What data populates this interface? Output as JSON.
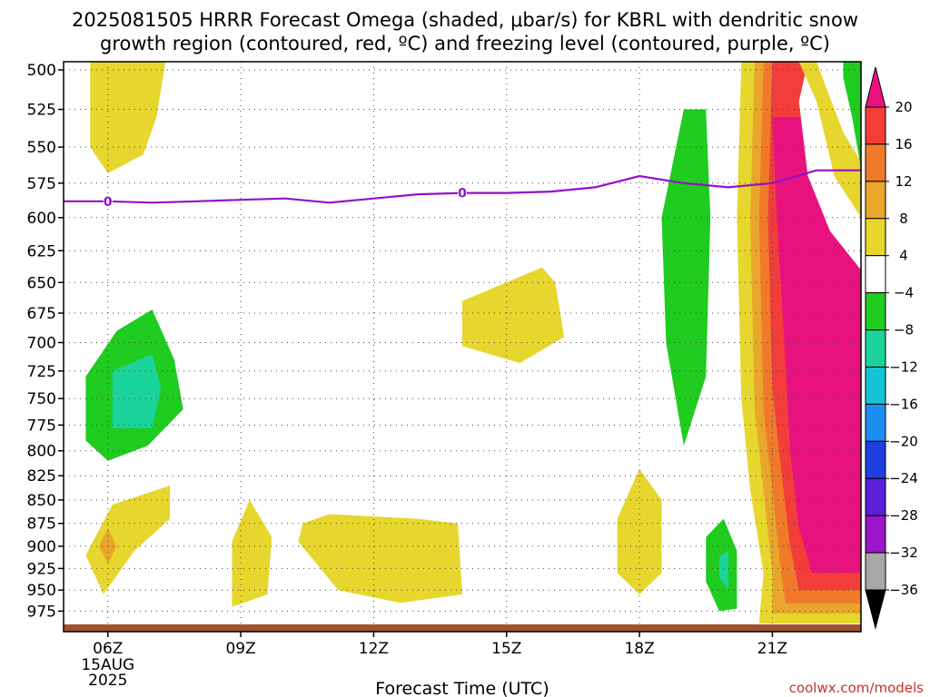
{
  "title_line1": "2025081505 HRRR Forecast Omega (shaded, μbar/s) for KBRL with dendritic snow",
  "title_line2": "growth region (contoured, red, ºC) and freezing level (contoured, purple, ºC)",
  "credit": "coolwx.com/models",
  "chart_data": {
    "type": "time-height cross section (filled contour)",
    "title": "2025081505 HRRR Forecast Omega (shaded, μbar/s) for KBRL with dendritic snow growth region (contoured, red, ºC) and freezing level (contoured, purple, ºC)",
    "xlabel": "Forecast Time (UTC)",
    "ylabel": "",
    "x_ticks": [
      {
        "label": "06Z",
        "hour": 6,
        "sublabels": [
          "15AUG",
          "2025"
        ]
      },
      {
        "label": "09Z",
        "hour": 9
      },
      {
        "label": "12Z",
        "hour": 12
      },
      {
        "label": "15Z",
        "hour": 15
      },
      {
        "label": "18Z",
        "hour": 18
      },
      {
        "label": "21Z",
        "hour": 21
      }
    ],
    "xlim_hours": [
      5,
      23
    ],
    "y_ticks": [
      500,
      525,
      550,
      575,
      600,
      625,
      650,
      675,
      700,
      725,
      750,
      775,
      800,
      825,
      850,
      875,
      900,
      925,
      950,
      975
    ],
    "y_units": "hPa",
    "ylim": [
      495,
      1000
    ],
    "y_scale": "log (pressure)",
    "grid": "dotted",
    "colorbar": {
      "labels": [
        "20",
        "16",
        "12",
        "8",
        "4",
        "−4",
        "−8",
        "−12",
        "−16",
        "−20",
        "−24",
        "−28",
        "−32",
        "−36"
      ],
      "levels": [
        {
          "range": ">20",
          "color": "#e8127f"
        },
        {
          "range": "16 to 20",
          "color": "#f23d3a"
        },
        {
          "range": "12 to 16",
          "color": "#f07a2a"
        },
        {
          "range": "8 to 12",
          "color": "#e9a62c"
        },
        {
          "range": "4 to 8",
          "color": "#e6d62e"
        },
        {
          "range": "-4 to 4",
          "color": "#ffffff"
        },
        {
          "range": "-8 to -4",
          "color": "#1fcc1f"
        },
        {
          "range": "-12 to -8",
          "color": "#1bd49a"
        },
        {
          "range": "-16 to -12",
          "color": "#14c3d4"
        },
        {
          "range": "-20 to -16",
          "color": "#1c8cf0"
        },
        {
          "range": "-24 to -20",
          "color": "#1f3ee0"
        },
        {
          "range": "-28 to -24",
          "color": "#5a1fd6"
        },
        {
          "range": "-32 to -28",
          "color": "#9a16c8"
        },
        {
          "range": "-36 to -32",
          "color": "#a8a8a8"
        },
        {
          "range": "<-36",
          "color": "#000000"
        }
      ]
    },
    "freezing_level": {
      "color": "#9410c9",
      "label": "0",
      "points": [
        {
          "hour": 5.0,
          "hPa": 588
        },
        {
          "hour": 6.0,
          "hPa": 588
        },
        {
          "hour": 7.0,
          "hPa": 589
        },
        {
          "hour": 8.0,
          "hPa": 588
        },
        {
          "hour": 9.0,
          "hPa": 587
        },
        {
          "hour": 10.0,
          "hPa": 586
        },
        {
          "hour": 11.0,
          "hPa": 589
        },
        {
          "hour": 12.0,
          "hPa": 586
        },
        {
          "hour": 13.0,
          "hPa": 583
        },
        {
          "hour": 14.0,
          "hPa": 582
        },
        {
          "hour": 15.0,
          "hPa": 582
        },
        {
          "hour": 16.0,
          "hPa": 581
        },
        {
          "hour": 17.0,
          "hPa": 578
        },
        {
          "hour": 18.0,
          "hPa": 570
        },
        {
          "hour": 19.0,
          "hPa": 575
        },
        {
          "hour": 20.0,
          "hPa": 578
        },
        {
          "hour": 21.0,
          "hPa": 575
        },
        {
          "hour": 22.0,
          "hPa": 566
        },
        {
          "hour": 23.0,
          "hPa": 566
        }
      ],
      "label_hours": [
        6.0,
        14.0
      ]
    },
    "omega_regions": [
      {
        "band": "4 to 8",
        "points": [
          [
            5.6,
            495
          ],
          [
            7.3,
            495
          ],
          [
            7.1,
            530
          ],
          [
            6.8,
            555
          ],
          [
            6.0,
            568
          ],
          [
            5.6,
            550
          ]
        ]
      },
      {
        "band": "-8 to -4",
        "points": [
          [
            6.0,
            810
          ],
          [
            6.9,
            795
          ],
          [
            7.7,
            760
          ],
          [
            7.5,
            715
          ],
          [
            7.0,
            672
          ],
          [
            6.2,
            690
          ],
          [
            5.5,
            730
          ],
          [
            5.5,
            790
          ]
        ]
      },
      {
        "band": "-12 to -8",
        "points": [
          [
            6.1,
            778
          ],
          [
            7.0,
            778
          ],
          [
            7.2,
            740
          ],
          [
            7.0,
            710
          ],
          [
            6.1,
            725
          ]
        ]
      },
      {
        "band": "4 to 8",
        "points": [
          [
            14.0,
            703
          ],
          [
            15.3,
            718
          ],
          [
            16.3,
            695
          ],
          [
            16.1,
            650
          ],
          [
            15.8,
            638
          ],
          [
            14.0,
            665
          ]
        ]
      },
      {
        "band": "-8 to -4",
        "points": [
          [
            19.0,
            795
          ],
          [
            19.5,
            730
          ],
          [
            19.6,
            600
          ],
          [
            19.5,
            525
          ],
          [
            19.0,
            525
          ],
          [
            18.5,
            600
          ],
          [
            18.6,
            700
          ]
        ]
      },
      {
        "band": "4 to 8",
        "points": [
          [
            5.5,
            910
          ],
          [
            5.9,
            955
          ],
          [
            6.6,
            905
          ],
          [
            7.4,
            870
          ],
          [
            7.4,
            835
          ],
          [
            6.1,
            855
          ]
        ]
      },
      {
        "band": "8 to 12",
        "points": [
          [
            6.0,
            920
          ],
          [
            6.2,
            900
          ],
          [
            6.0,
            880
          ],
          [
            5.8,
            900
          ]
        ]
      },
      {
        "band": "4 to 8",
        "points": [
          [
            8.8,
            970
          ],
          [
            9.6,
            955
          ],
          [
            9.7,
            890
          ],
          [
            9.2,
            850
          ],
          [
            8.8,
            895
          ]
        ]
      },
      {
        "band": "4 to 8",
        "points": [
          [
            10.3,
            895
          ],
          [
            11.2,
            950
          ],
          [
            12.6,
            965
          ],
          [
            14.0,
            955
          ],
          [
            13.9,
            875
          ],
          [
            13.0,
            870
          ],
          [
            11.0,
            865
          ],
          [
            10.4,
            875
          ]
        ]
      },
      {
        "band": "4 to 8",
        "points": [
          [
            17.5,
            930
          ],
          [
            18.0,
            955
          ],
          [
            18.5,
            930
          ],
          [
            18.5,
            850
          ],
          [
            18.0,
            818
          ],
          [
            17.5,
            870
          ]
        ]
      },
      {
        "band": "-8 to -4",
        "points": [
          [
            19.5,
            940
          ],
          [
            19.8,
            975
          ],
          [
            20.2,
            972
          ],
          [
            20.2,
            905
          ],
          [
            19.9,
            870
          ],
          [
            19.5,
            890
          ]
        ]
      },
      {
        "band": "-12 to -8",
        "points": [
          [
            19.8,
            935
          ],
          [
            20.0,
            950
          ],
          [
            20.0,
            905
          ],
          [
            19.8,
            912
          ]
        ]
      },
      {
        "band": "4 to 8",
        "points": [
          [
            20.3,
            495
          ],
          [
            23.0,
            495
          ],
          [
            23.0,
            990
          ],
          [
            20.7,
            990
          ],
          [
            20.8,
            930
          ],
          [
            20.5,
            840
          ],
          [
            20.3,
            750
          ],
          [
            20.2,
            600
          ]
        ]
      },
      {
        "band": "8 to 12",
        "points": [
          [
            20.6,
            495
          ],
          [
            23.0,
            495
          ],
          [
            23.0,
            978
          ],
          [
            21.0,
            978
          ],
          [
            21.0,
            930
          ],
          [
            20.8,
            840
          ],
          [
            20.6,
            760
          ],
          [
            20.5,
            600
          ]
        ]
      },
      {
        "band": "12 to 16",
        "points": [
          [
            20.8,
            495
          ],
          [
            23.0,
            495
          ],
          [
            23.0,
            966
          ],
          [
            21.3,
            966
          ],
          [
            21.2,
            930
          ],
          [
            21.0,
            840
          ],
          [
            20.8,
            760
          ],
          [
            20.7,
            600
          ]
        ]
      },
      {
        "band": "16 to 20",
        "points": [
          [
            21.0,
            495
          ],
          [
            23.0,
            495
          ],
          [
            23.0,
            950
          ],
          [
            21.6,
            950
          ],
          [
            21.4,
            900
          ],
          [
            21.2,
            820
          ],
          [
            21.0,
            740
          ],
          [
            20.9,
            600
          ]
        ]
      },
      {
        "band": ">20",
        "points": [
          [
            21.0,
            530
          ],
          [
            23.0,
            530
          ],
          [
            23.0,
            930
          ],
          [
            21.9,
            930
          ],
          [
            21.6,
            880
          ],
          [
            21.4,
            800
          ],
          [
            21.3,
            720
          ],
          [
            21.1,
            600
          ]
        ]
      },
      {
        "band": "-4 to 4",
        "points": [
          [
            21.8,
            495
          ],
          [
            23.0,
            495
          ],
          [
            23.0,
            640
          ],
          [
            22.3,
            610
          ],
          [
            21.8,
            570
          ],
          [
            21.6,
            520
          ]
        ]
      },
      {
        "band": "4 to 8",
        "points": [
          [
            21.6,
            495
          ],
          [
            23.0,
            495
          ],
          [
            23.0,
            600
          ],
          [
            22.4,
            570
          ],
          [
            22.0,
            520
          ]
        ]
      },
      {
        "band": "-4 to 4",
        "points": [
          [
            22.0,
            495
          ],
          [
            23.0,
            495
          ],
          [
            23.0,
            560
          ],
          [
            22.6,
            540
          ],
          [
            22.2,
            510
          ]
        ]
      },
      {
        "band": "-8 to -4",
        "points": [
          [
            22.6,
            495
          ],
          [
            23.0,
            495
          ],
          [
            23.0,
            565
          ],
          [
            22.8,
            530
          ],
          [
            22.6,
            505
          ]
        ]
      }
    ]
  }
}
